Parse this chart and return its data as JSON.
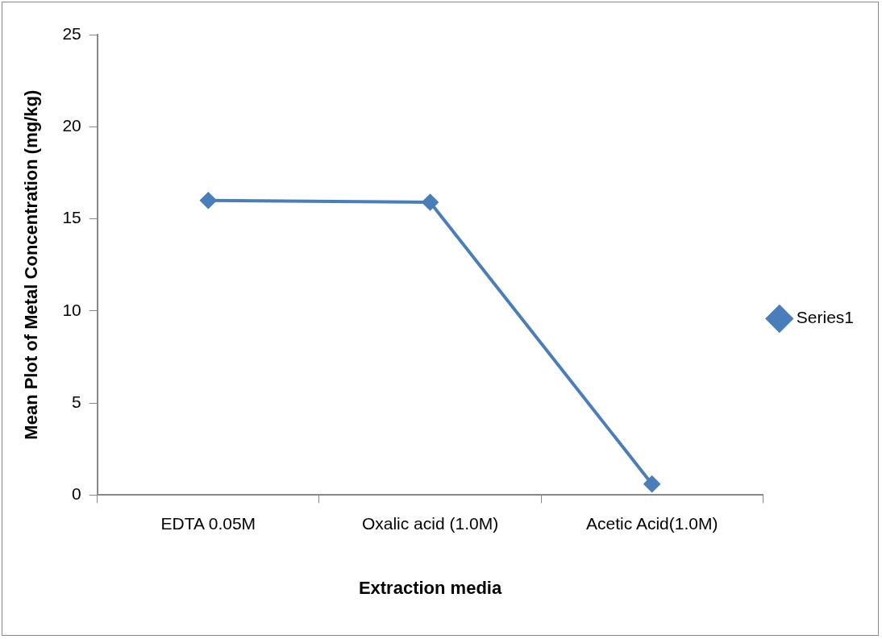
{
  "chart_data": {
    "type": "line",
    "xlabel": "Extraction media",
    "ylabel": "Mean Plot of Metal Concentration (mg/kg)",
    "categories": [
      "EDTA 0.05M",
      "Oxalic acid (1.0M)",
      "Acetic Acid(1.0M)"
    ],
    "series": [
      {
        "name": "Series1",
        "color": "#4a7ebb",
        "values": [
          16.0,
          15.9,
          0.6
        ]
      }
    ],
    "ylim": [
      0,
      25
    ],
    "yticks": [
      0,
      5,
      10,
      15,
      20,
      25
    ],
    "grid": false,
    "legend": "right",
    "marker": "diamond",
    "line_style": "solid"
  }
}
